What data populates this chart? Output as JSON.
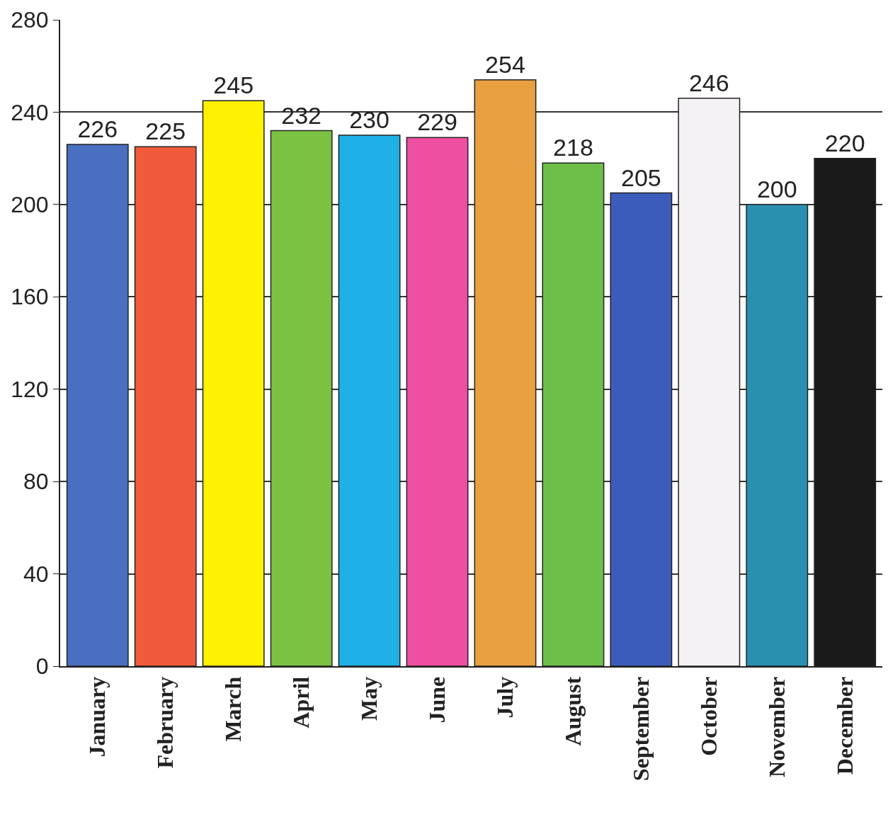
{
  "chart_data": {
    "type": "bar",
    "categories": [
      "January",
      "February",
      "March",
      "April",
      "May",
      "June",
      "July",
      "August",
      "September",
      "October",
      "November",
      "December"
    ],
    "values": [
      226,
      225,
      245,
      232,
      230,
      229,
      254,
      218,
      205,
      246,
      200,
      220
    ],
    "colors": [
      "#4a6fc0",
      "#f05a3a",
      "#fff200",
      "#7cc242",
      "#1eb0e6",
      "#ee4fa0",
      "#e8a040",
      "#6cc04a",
      "#3c5cbc",
      "#f4f2f4",
      "#2a90b0",
      "#1a1a1a"
    ],
    "ylim": [
      0,
      280
    ],
    "yticks": [
      0,
      40,
      80,
      120,
      160,
      200,
      240,
      280
    ],
    "grid": "y",
    "data_labels": true
  }
}
